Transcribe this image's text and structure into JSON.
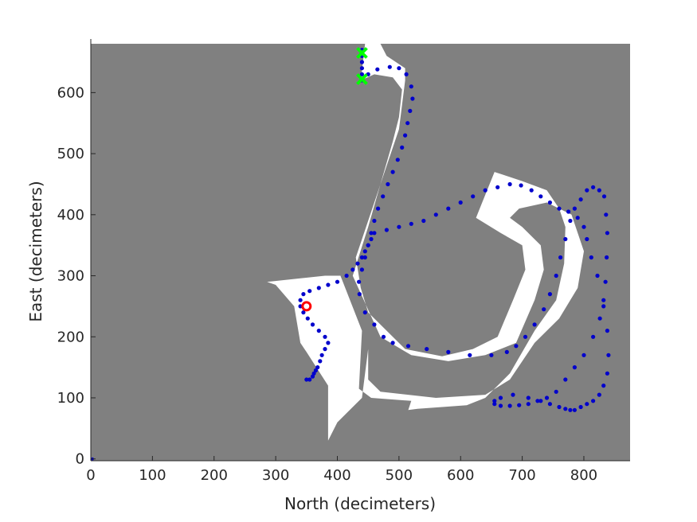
{
  "chart_data": {
    "type": "scatter",
    "xlabel": "North (decimeters)",
    "ylabel": "East (decimeters)",
    "xlim": [
      0,
      875
    ],
    "ylim": [
      -3,
      680
    ],
    "xticks": [
      0,
      100,
      200,
      300,
      400,
      500,
      600,
      700,
      800
    ],
    "yticks": [
      0,
      100,
      200,
      300,
      400,
      500,
      600
    ],
    "grid": false,
    "background_color": "#808080",
    "free_space_color": "#ffffff",
    "path_color": "#0000cc",
    "start_color": "#00ff00",
    "end_color": "#ff0000",
    "free_space_regions": [
      [
        [
          286,
          290
        ],
        [
          380,
          300
        ],
        [
          405,
          300
        ],
        [
          440,
          210
        ],
        [
          435,
          115
        ],
        [
          455,
          100
        ],
        [
          520,
          95
        ],
        [
          515,
          80
        ],
        [
          530,
          82
        ],
        [
          610,
          88
        ],
        [
          640,
          100
        ],
        [
          680,
          140
        ],
        [
          720,
          210
        ],
        [
          755,
          260
        ],
        [
          768,
          320
        ],
        [
          770,
          380
        ],
        [
          760,
          410
        ],
        [
          740,
          440
        ],
        [
          700,
          455
        ],
        [
          670,
          465
        ],
        [
          655,
          470
        ],
        [
          635,
          420
        ],
        [
          625,
          395
        ],
        [
          665,
          370
        ],
        [
          700,
          350
        ],
        [
          705,
          310
        ],
        [
          685,
          260
        ],
        [
          660,
          200
        ],
        [
          620,
          180
        ],
        [
          570,
          168
        ],
        [
          510,
          180
        ],
        [
          480,
          210
        ],
        [
          450,
          240
        ],
        [
          438,
          280
        ],
        [
          430,
          330
        ],
        [
          460,
          420
        ],
        [
          480,
          480
        ],
        [
          500,
          540
        ],
        [
          510,
          620
        ],
        [
          510,
          640
        ],
        [
          480,
          660
        ],
        [
          470,
          680
        ],
        [
          445,
          680
        ],
        [
          438,
          620
        ],
        [
          460,
          630
        ],
        [
          490,
          625
        ],
        [
          505,
          605
        ],
        [
          500,
          560
        ],
        [
          490,
          520
        ],
        [
          470,
          450
        ],
        [
          450,
          380
        ],
        [
          425,
          300
        ],
        [
          470,
          200
        ],
        [
          520,
          170
        ],
        [
          580,
          160
        ],
        [
          640,
          170
        ],
        [
          690,
          190
        ],
        [
          720,
          260
        ],
        [
          735,
          310
        ],
        [
          730,
          350
        ],
        [
          700,
          380
        ],
        [
          680,
          395
        ],
        [
          695,
          410
        ],
        [
          740,
          420
        ],
        [
          780,
          400
        ],
        [
          800,
          340
        ],
        [
          790,
          280
        ],
        [
          760,
          230
        ],
        [
          720,
          190
        ],
        [
          680,
          130
        ],
        [
          640,
          105
        ],
        [
          560,
          100
        ],
        [
          470,
          110
        ],
        [
          450,
          130
        ],
        [
          450,
          180
        ],
        [
          440,
          100
        ],
        [
          400,
          60
        ],
        [
          385,
          30
        ],
        [
          385,
          120
        ],
        [
          350,
          175
        ],
        [
          340,
          190
        ],
        [
          330,
          250
        ],
        [
          300,
          285
        ]
      ]
    ],
    "series": [
      {
        "x": [
          440,
          440,
          440,
          440,
          440,
          440,
          450,
          465,
          485,
          500,
          512,
          520,
          522,
          518,
          514,
          510,
          505,
          498,
          490,
          482,
          474,
          466,
          460,
          455,
          450,
          445,
          440,
          435,
          436,
          445,
          460,
          475,
          490,
          515,
          545,
          580,
          615,
          650,
          675,
          690,
          705,
          720,
          735,
          745,
          755,
          762,
          770,
          778,
          785,
          795,
          805,
          815,
          825,
          833,
          836,
          838,
          837,
          835,
          832,
          826,
          815,
          800,
          785,
          770,
          755,
          740,
          725,
          710,
          695,
          680,
          665,
          655,
          655,
          665,
          685,
          710,
          730,
          745,
          760,
          770,
          778,
          785,
          795,
          805,
          815,
          825,
          832,
          838,
          840,
          838,
          832,
          822,
          812,
          805,
          800,
          790,
          775,
          760,
          745,
          730,
          715,
          698,
          680,
          660,
          640,
          620,
          600,
          580,
          560,
          540,
          520,
          500,
          480,
          460,
          455,
          450,
          445,
          440,
          433,
          425,
          415,
          400,
          385,
          370,
          355,
          345,
          340,
          340,
          345,
          352,
          360,
          370,
          380,
          385,
          380,
          375,
          372,
          368,
          365,
          362,
          360,
          355,
          350
        ],
        "y": [
          670,
          660,
          650,
          640,
          630,
          620,
          630,
          638,
          642,
          640,
          630,
          610,
          590,
          570,
          550,
          530,
          510,
          490,
          470,
          450,
          430,
          410,
          390,
          370,
          350,
          330,
          310,
          290,
          270,
          240,
          220,
          200,
          190,
          185,
          180,
          175,
          170,
          170,
          175,
          185,
          200,
          220,
          245,
          270,
          300,
          330,
          360,
          390,
          410,
          425,
          440,
          445,
          440,
          430,
          400,
          370,
          330,
          290,
          260,
          230,
          200,
          170,
          150,
          130,
          110,
          100,
          95,
          90,
          88,
          87,
          87,
          90,
          95,
          100,
          105,
          100,
          95,
          90,
          85,
          82,
          80,
          80,
          85,
          90,
          95,
          105,
          120,
          140,
          170,
          210,
          250,
          300,
          330,
          360,
          380,
          395,
          405,
          410,
          420,
          430,
          440,
          448,
          450,
          445,
          440,
          430,
          420,
          410,
          400,
          390,
          385,
          380,
          375,
          370,
          360,
          350,
          340,
          330,
          320,
          310,
          300,
          290,
          285,
          280,
          275,
          270,
          260,
          250,
          240,
          230,
          220,
          210,
          200,
          190,
          180,
          170,
          160,
          150,
          145,
          140,
          135,
          130,
          130
        ],
        "marker_size": 2.6
      }
    ],
    "start_points": [
      {
        "x": 440,
        "y": 665
      },
      {
        "x": 440,
        "y": 622
      }
    ],
    "end_point": {
      "x": 350,
      "y": 250
    },
    "origin_marker": {
      "x": 0,
      "y": 0
    }
  }
}
